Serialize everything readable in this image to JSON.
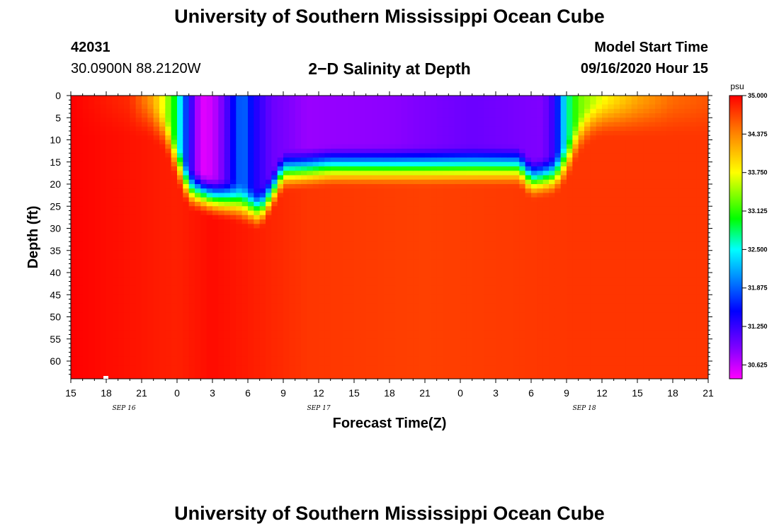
{
  "page": {
    "title_top": "University of Southern Mississippi Ocean Cube",
    "title_bottom": "University of Southern Mississippi Ocean Cube",
    "station_id": "42031",
    "station_coords": "30.0900N 88.2120W",
    "plot_title": "2−D Salinity at Depth",
    "model_start_label": "Model Start Time",
    "model_start_value": "09/16/2020 Hour 15"
  },
  "chart_data": {
    "type": "heatmap",
    "title": "2−D Salinity at Depth",
    "xlabel": "Forecast Time(Z)",
    "ylabel": "Depth (ft)",
    "x_hours_range": [
      0,
      54
    ],
    "x_tick_hours": [
      0,
      3,
      6,
      9,
      12,
      15,
      18,
      21,
      24,
      27,
      30,
      33,
      36,
      39,
      42,
      45,
      48,
      51,
      54
    ],
    "x_tick_labels": [
      "15",
      "18",
      "21",
      "0",
      "3",
      "6",
      "9",
      "12",
      "15",
      "18",
      "21",
      "0",
      "3",
      "6",
      "9",
      "12",
      "15",
      "18",
      "21"
    ],
    "date_labels": [
      {
        "text": "SEP 16",
        "hour": 4.5
      },
      {
        "text": "SEP 17",
        "hour": 21
      },
      {
        "text": "SEP 18",
        "hour": 43.5
      }
    ],
    "y_range": [
      0,
      64
    ],
    "y_ticks": [
      0,
      5,
      10,
      15,
      20,
      25,
      30,
      35,
      40,
      45,
      50,
      55,
      60
    ],
    "colorbar": {
      "unit": "psu",
      "range": [
        30.4,
        35.0
      ],
      "tick_values": [
        35.0,
        34.375,
        33.75,
        33.125,
        32.5,
        31.875,
        31.25,
        30.625
      ],
      "tick_labels": [
        "35.000",
        "34.375",
        "33.750",
        "33.125",
        "32.500",
        "31.875",
        "31.250",
        "30.625"
      ],
      "stops": [
        {
          "value": 30.4,
          "color": "#ff00ff"
        },
        {
          "value": 30.9,
          "color": "#8000ff"
        },
        {
          "value": 31.5,
          "color": "#0000ff"
        },
        {
          "value": 32.0,
          "color": "#0080ff"
        },
        {
          "value": 32.5,
          "color": "#00ffff"
        },
        {
          "value": 33.0,
          "color": "#00ff00"
        },
        {
          "value": 33.75,
          "color": "#ffff00"
        },
        {
          "value": 34.4,
          "color": "#ff8000"
        },
        {
          "value": 35.0,
          "color": "#ff0000"
        }
      ]
    },
    "field": {
      "layer_bottoms": [
        {
          "hour": 0,
          "ft": 0
        },
        {
          "hour": 6.5,
          "ft": 0
        },
        {
          "hour": 8,
          "ft": 3
        },
        {
          "hour": 9,
          "ft": 10
        },
        {
          "hour": 10,
          "ft": 16
        },
        {
          "hour": 12,
          "ft": 18
        },
        {
          "hour": 14,
          "ft": 19
        },
        {
          "hour": 16,
          "ft": 21
        },
        {
          "hour": 17,
          "ft": 17
        },
        {
          "hour": 18,
          "ft": 12
        },
        {
          "hour": 22,
          "ft": 11
        },
        {
          "hour": 26,
          "ft": 11
        },
        {
          "hour": 30,
          "ft": 11
        },
        {
          "hour": 38,
          "ft": 11
        },
        {
          "hour": 39,
          "ft": 14
        },
        {
          "hour": 41,
          "ft": 13
        },
        {
          "hour": 42,
          "ft": 10
        },
        {
          "hour": 43,
          "ft": 4
        },
        {
          "hour": 44,
          "ft": 1
        },
        {
          "hour": 45,
          "ft": 0
        },
        {
          "hour": 54,
          "ft": 0
        }
      ],
      "surface_salinity": [
        {
          "hour": 0,
          "psu": 35.0
        },
        {
          "hour": 5,
          "psu": 34.8
        },
        {
          "hour": 7,
          "psu": 34.2
        },
        {
          "hour": 8,
          "psu": 33.6
        },
        {
          "hour": 9,
          "psu": 32.8
        },
        {
          "hour": 10,
          "psu": 31.4
        },
        {
          "hour": 11,
          "psu": 30.5
        },
        {
          "hour": 12,
          "psu": 30.6
        },
        {
          "hour": 13,
          "psu": 31.0
        },
        {
          "hour": 14.5,
          "psu": 32.0
        },
        {
          "hour": 15.5,
          "psu": 31.4
        },
        {
          "hour": 17,
          "psu": 31.0
        },
        {
          "hour": 20,
          "psu": 30.8
        },
        {
          "hour": 27,
          "psu": 30.85
        },
        {
          "hour": 34,
          "psu": 31.0
        },
        {
          "hour": 40,
          "psu": 30.9
        },
        {
          "hour": 41,
          "psu": 31.3
        },
        {
          "hour": 42,
          "psu": 32.6
        },
        {
          "hour": 43,
          "psu": 33.3
        },
        {
          "hour": 46,
          "psu": 33.9
        },
        {
          "hour": 48,
          "psu": 34.2
        },
        {
          "hour": 51,
          "psu": 34.5
        },
        {
          "hour": 54,
          "psu": 34.6
        }
      ],
      "deep_salinity": [
        {
          "hour": 0,
          "psu": 35.0
        },
        {
          "hour": 9,
          "psu": 34.85
        },
        {
          "hour": 12,
          "psu": 34.95
        },
        {
          "hour": 20,
          "psu": 34.75
        },
        {
          "hour": 30,
          "psu": 34.7
        },
        {
          "hour": 42,
          "psu": 34.75
        },
        {
          "hour": 54,
          "psu": 34.75
        }
      ],
      "gradient_ft": 10
    }
  }
}
